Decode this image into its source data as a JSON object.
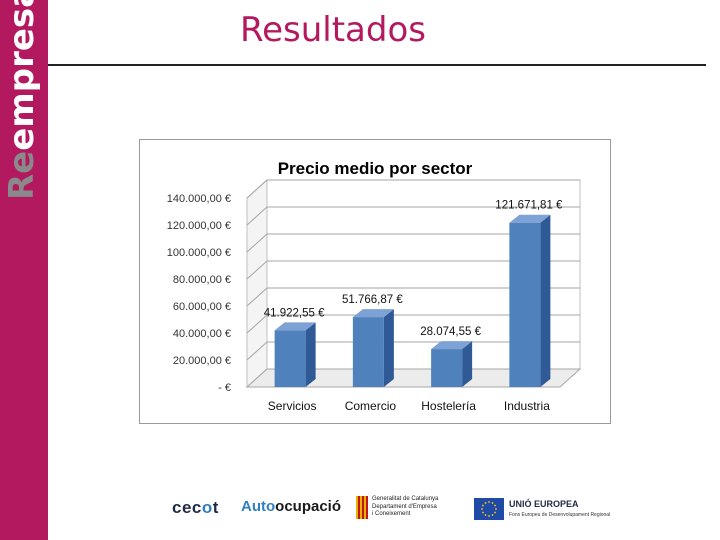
{
  "brand": {
    "prefix": "Re",
    "suffix": "empresa"
  },
  "page": {
    "title": "Resultados"
  },
  "chart_data": {
    "type": "bar",
    "title": "Precio medio por sector",
    "categories": [
      "Servicios",
      "Comercio",
      "Hostelería",
      "Industria"
    ],
    "values": [
      41922.55,
      51766.87,
      28074.55,
      121671.81
    ],
    "value_labels": [
      "41.922,55 €",
      "51.766,87 €",
      "28.074,55 €",
      "121.671,81 €"
    ],
    "ylim": [
      0,
      140000
    ],
    "y_ticks": [
      0,
      20000,
      40000,
      60000,
      80000,
      100000,
      120000,
      140000
    ],
    "y_tick_labels": [
      "- €",
      "20.000,00 €",
      "40.000,00 €",
      "60.000,00 €",
      "80.000,00 €",
      "100.000,00 €",
      "120.000,00 €",
      "140.000,00 €"
    ],
    "grid": true,
    "style": "3d-column",
    "bar_color": "#4f81bd"
  },
  "footer": {
    "cecot": {
      "part1": "ce",
      "part2": "c",
      "part3": "o",
      "part4": "t"
    },
    "autoocupacio": {
      "part1": "Auto",
      "part2": "ocupació"
    },
    "generalitat": {
      "line1": "Generalitat de Catalunya",
      "line2": "Departament d'Empresa",
      "line3": "i Coneixement"
    },
    "eu": {
      "title": "UNIÓ EUROPEA",
      "subtitle": "Fons Europeu de Desenvolupament Regional"
    }
  }
}
